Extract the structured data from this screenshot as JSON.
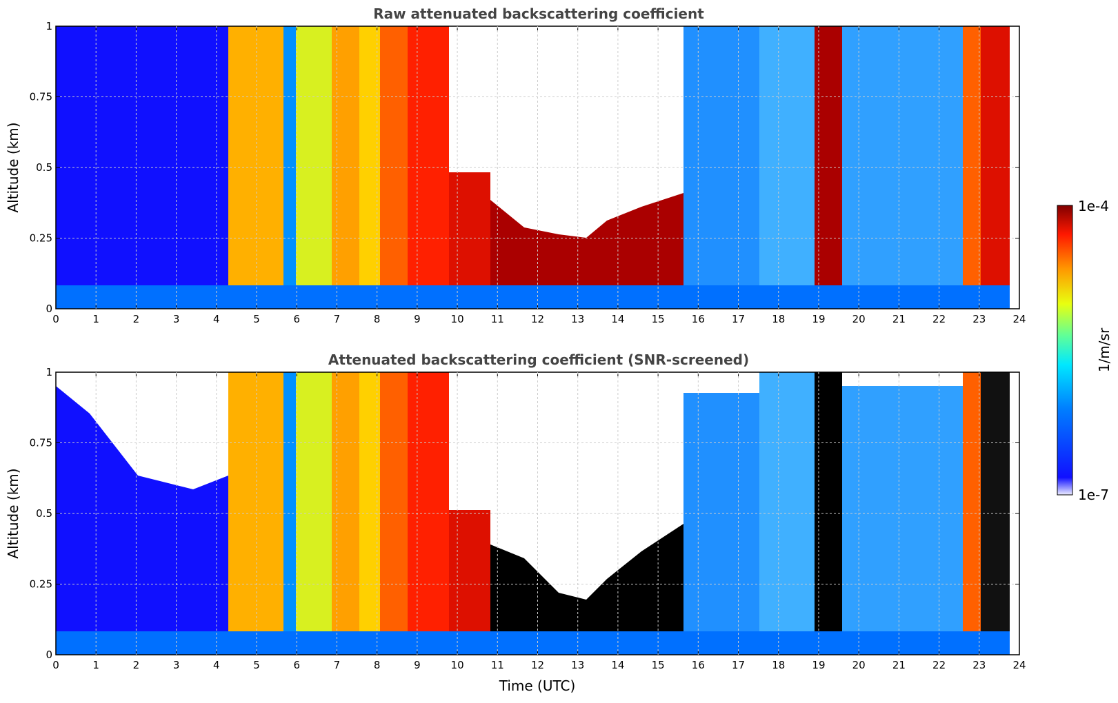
{
  "chart_data": [
    {
      "type": "heatmap",
      "title": "Raw attenuated backscattering coefficient",
      "xlabel": "",
      "ylabel": "Altitude (km)",
      "xlim": [
        0,
        24
      ],
      "ylim": [
        0,
        1
      ],
      "xticks": [
        "0",
        "1",
        "2",
        "3",
        "4",
        "5",
        "6",
        "7",
        "8",
        "9",
        "10",
        "11",
        "12",
        "13",
        "14",
        "15",
        "16",
        "17",
        "18",
        "19",
        "20",
        "21",
        "22",
        "23",
        "24"
      ],
      "yticks": [
        "0",
        "0.25",
        "0.5",
        "0.75",
        "1"
      ],
      "grid": true,
      "data_end_hour": 23.8,
      "screened": false
    },
    {
      "type": "heatmap",
      "title": "Attenuated backscattering coefficient (SNR-screened)",
      "xlabel": "Time (UTC)",
      "ylabel": "Altitude (km)",
      "xlim": [
        0,
        24
      ],
      "ylim": [
        0,
        1
      ],
      "xticks": [
        "0",
        "1",
        "2",
        "3",
        "4",
        "5",
        "6",
        "7",
        "8",
        "9",
        "10",
        "11",
        "12",
        "13",
        "14",
        "15",
        "16",
        "17",
        "18",
        "19",
        "20",
        "21",
        "22",
        "23",
        "24"
      ],
      "yticks": [
        "0",
        "0.25",
        "0.5",
        "0.75",
        "1"
      ],
      "grid": true,
      "data_end_hour": 23.8,
      "screened": true
    }
  ],
  "colorbar": {
    "label": "1/m/sr",
    "max_label": "1e-4",
    "min_label": "1e-7",
    "scale": "log",
    "colormap": "jet"
  }
}
